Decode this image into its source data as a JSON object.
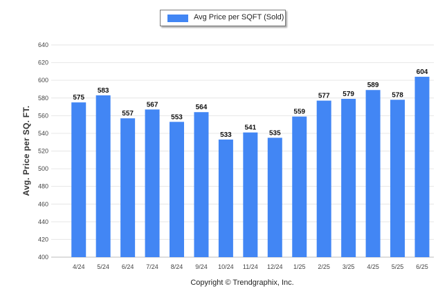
{
  "chart_data": {
    "type": "bar",
    "title": "",
    "xlabel": "",
    "ylabel": "Avg. Price per SQ. FT.",
    "ylim": [
      400,
      640
    ],
    "yticks": [
      400,
      420,
      440,
      460,
      480,
      500,
      520,
      540,
      560,
      580,
      600,
      620,
      640
    ],
    "grid": true,
    "legend_position": "top-center",
    "categories": [
      "4/24",
      "5/24",
      "6/24",
      "7/24",
      "8/24",
      "9/24",
      "10/24",
      "11/24",
      "12/24",
      "1/25",
      "2/25",
      "3/25",
      "4/25",
      "5/25",
      "6/25"
    ],
    "series": [
      {
        "name": "Avg Price per SQFT (Sold)",
        "color": "#4286f4",
        "values": [
          575,
          583,
          557,
          567,
          553,
          564,
          533,
          541,
          535,
          559,
          577,
          579,
          589,
          578,
          604
        ]
      }
    ]
  },
  "footer": {
    "copyright": "Copyright © Trendgraphix, Inc."
  }
}
